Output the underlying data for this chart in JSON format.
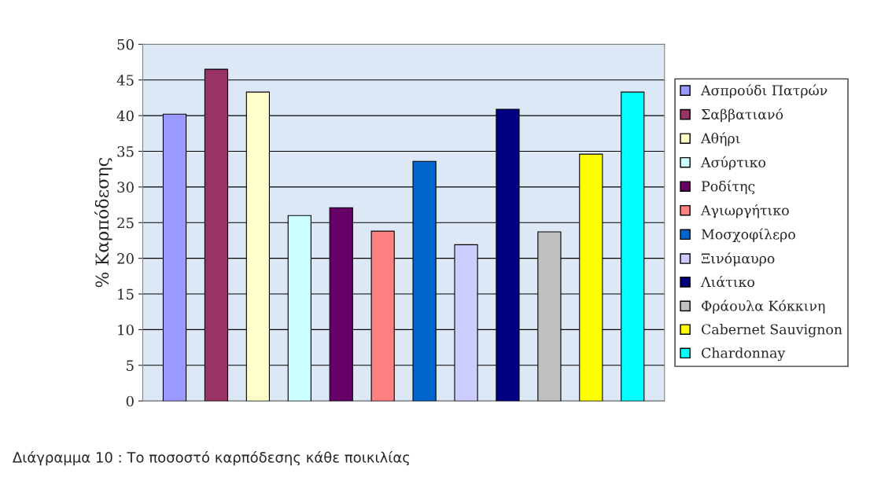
{
  "chart_data": {
    "type": "bar",
    "ylabel": "% Καρπόδεσης",
    "categories": [
      null
    ],
    "series": [
      {
        "name": "Ασπρούδι Πατρών",
        "color": "#9999ff",
        "values": [
          40.2
        ]
      },
      {
        "name": "Σαββατιανό",
        "color": "#993366",
        "values": [
          46.5
        ]
      },
      {
        "name": "Αθήρι",
        "color": "#ffffcc",
        "values": [
          43.3
        ]
      },
      {
        "name": "Ασύρτικο",
        "color": "#ccffff",
        "values": [
          26.0
        ]
      },
      {
        "name": "Ροδίτης",
        "color": "#660066",
        "values": [
          27.1
        ]
      },
      {
        "name": "Αγιωργήτικο",
        "color": "#ff8080",
        "values": [
          23.8
        ]
      },
      {
        "name": "Μοσχοφίλερο",
        "color": "#0066cc",
        "values": [
          33.6
        ]
      },
      {
        "name": "Ξινόμαυρο",
        "color": "#ccccff",
        "values": [
          21.9
        ]
      },
      {
        "name": "Λιάτικο",
        "color": "#000080",
        "values": [
          40.9
        ]
      },
      {
        "name": "Φράουλα Κόκκινη",
        "color": "#c0c0c0",
        "values": [
          23.7
        ]
      },
      {
        "name": "Cabernet Sauvignon",
        "color": "#ffff00",
        "values": [
          34.6
        ]
      },
      {
        "name": "Chardonnay",
        "color": "#00ffff",
        "values": [
          43.3
        ]
      }
    ],
    "ylim": [
      0,
      50
    ],
    "yticks": [
      0,
      5,
      10,
      15,
      20,
      25,
      30,
      35,
      40,
      45,
      50
    ],
    "grid": "y",
    "legend": "right",
    "annotations": [
      "Διάγραμμα 10 : Το ποσοστό καρπόδεσης κάθε ποικιλίας"
    ]
  }
}
